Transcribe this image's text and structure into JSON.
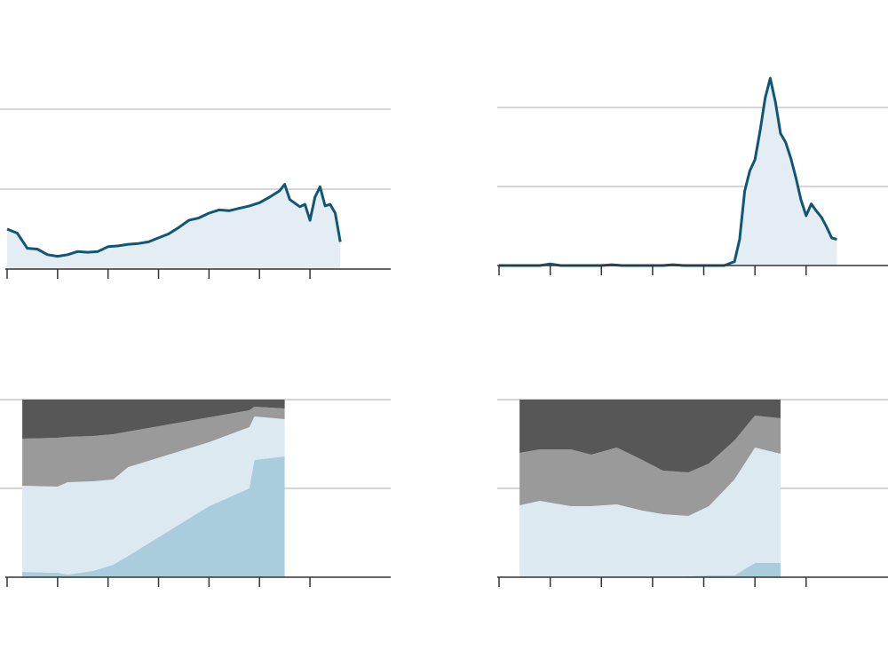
{
  "chart_data": [
    {
      "type": "line",
      "color": "#0f5775",
      "fill_color": "#e4edf4",
      "x": [
        0,
        2,
        4,
        6,
        8,
        10,
        12,
        14,
        16,
        18,
        20,
        22,
        24,
        26,
        28,
        30,
        32,
        34,
        36,
        38,
        40,
        42,
        44,
        46,
        48,
        50,
        52,
        54,
        55,
        56,
        58,
        59,
        60,
        61,
        62,
        63,
        64,
        65,
        66
      ],
      "values": [
        0.5,
        0.45,
        0.26,
        0.25,
        0.18,
        0.16,
        0.18,
        0.22,
        0.21,
        0.22,
        0.28,
        0.29,
        0.31,
        0.32,
        0.34,
        0.39,
        0.44,
        0.52,
        0.61,
        0.64,
        0.7,
        0.74,
        0.73,
        0.76,
        0.79,
        0.83,
        0.9,
        0.98,
        1.06,
        0.87,
        0.78,
        0.81,
        0.61,
        0.9,
        1.03,
        0.79,
        0.81,
        0.7,
        0.34
      ],
      "xlim": [
        0,
        76
      ],
      "xticks": [
        0,
        10,
        20,
        30,
        40,
        50,
        60
      ],
      "ylim": [
        0,
        2.4
      ],
      "yticks": [
        0,
        1,
        2
      ],
      "grid": true
    },
    {
      "type": "line",
      "color": "#0f5775",
      "fill_color": "#e4edf4",
      "x": [
        0,
        2,
        4,
        6,
        8,
        10,
        12,
        14,
        16,
        18,
        20,
        22,
        24,
        26,
        28,
        30,
        32,
        34,
        36,
        38,
        40,
        42,
        44,
        46,
        47,
        48,
        49,
        50,
        51,
        52,
        53,
        54,
        55,
        56,
        57,
        58,
        59,
        60,
        61,
        62,
        63,
        64,
        65,
        66
      ],
      "values": [
        0,
        0,
        0,
        0,
        0,
        0.02,
        0,
        0,
        0,
        0,
        0,
        0.01,
        0,
        0,
        0,
        0,
        0,
        0.01,
        0,
        0,
        0,
        0,
        0,
        0.05,
        0.33,
        0.94,
        1.2,
        1.34,
        1.7,
        2.12,
        2.37,
        2.07,
        1.67,
        1.56,
        1.36,
        1.11,
        0.83,
        0.63,
        0.78,
        0.69,
        0.61,
        0.49,
        0.35,
        0.33
      ],
      "xlim": [
        0,
        76
      ],
      "xticks": [
        0,
        10,
        20,
        30,
        40,
        50,
        60
      ],
      "ylim": [
        0,
        2.4
      ],
      "yticks": [
        0,
        1,
        2
      ],
      "grid": true
    },
    {
      "type": "area",
      "stacked": true,
      "x": [
        3,
        10,
        12,
        17,
        21,
        24,
        40,
        48,
        49,
        55
      ],
      "series": [
        {
          "color": "#a9cddc",
          "values": [
            3,
            2.5,
            1.5,
            3.5,
            7,
            12,
            40,
            50,
            66,
            68
          ]
        },
        {
          "color": "#dce9f0",
          "values": [
            48.5,
            48.5,
            52,
            50.5,
            48,
            50,
            36,
            34.5,
            24.5,
            21
          ]
        },
        {
          "color": "#9a9a9a",
          "values": [
            26.5,
            27.5,
            25.5,
            25.5,
            25.5,
            20,
            14,
            9.5,
            5.5,
            6
          ]
        },
        {
          "color": "#575757",
          "values": [
            22,
            21.5,
            21,
            20.5,
            19.5,
            18,
            10,
            6,
            4,
            5
          ]
        }
      ],
      "xlim": [
        0,
        76
      ],
      "xticks": [
        0,
        10,
        20,
        30,
        40,
        50,
        60
      ],
      "ylim": [
        0,
        100
      ],
      "yticks": [
        0,
        50,
        100
      ],
      "grid": true
    },
    {
      "type": "area",
      "stacked": true,
      "x": [
        4,
        8,
        14,
        18,
        23,
        28,
        32,
        37,
        41,
        46,
        50,
        55
      ],
      "series": [
        {
          "color": "#a9cddc",
          "values": [
            0,
            0,
            0,
            0,
            0,
            0,
            0,
            0.5,
            1,
            1,
            8,
            8
          ]
        },
        {
          "color": "#dce9f0",
          "values": [
            40.5,
            43,
            40,
            40,
            41,
            37.5,
            35.5,
            34,
            39,
            54,
            65,
            61.5
          ]
        },
        {
          "color": "#9a9a9a",
          "values": [
            29.5,
            29,
            32,
            29,
            32,
            28.5,
            24.5,
            24.5,
            24,
            22,
            18,
            20
          ]
        },
        {
          "color": "#575757",
          "values": [
            30,
            28,
            28,
            31,
            27,
            34,
            40,
            41,
            36,
            23,
            9,
            10.5
          ]
        }
      ],
      "xlim": [
        0,
        76
      ],
      "xticks": [
        0,
        10,
        20,
        30,
        40,
        50,
        60
      ],
      "ylim": [
        0,
        100
      ],
      "yticks": [
        0,
        50,
        100
      ],
      "grid": true
    }
  ]
}
